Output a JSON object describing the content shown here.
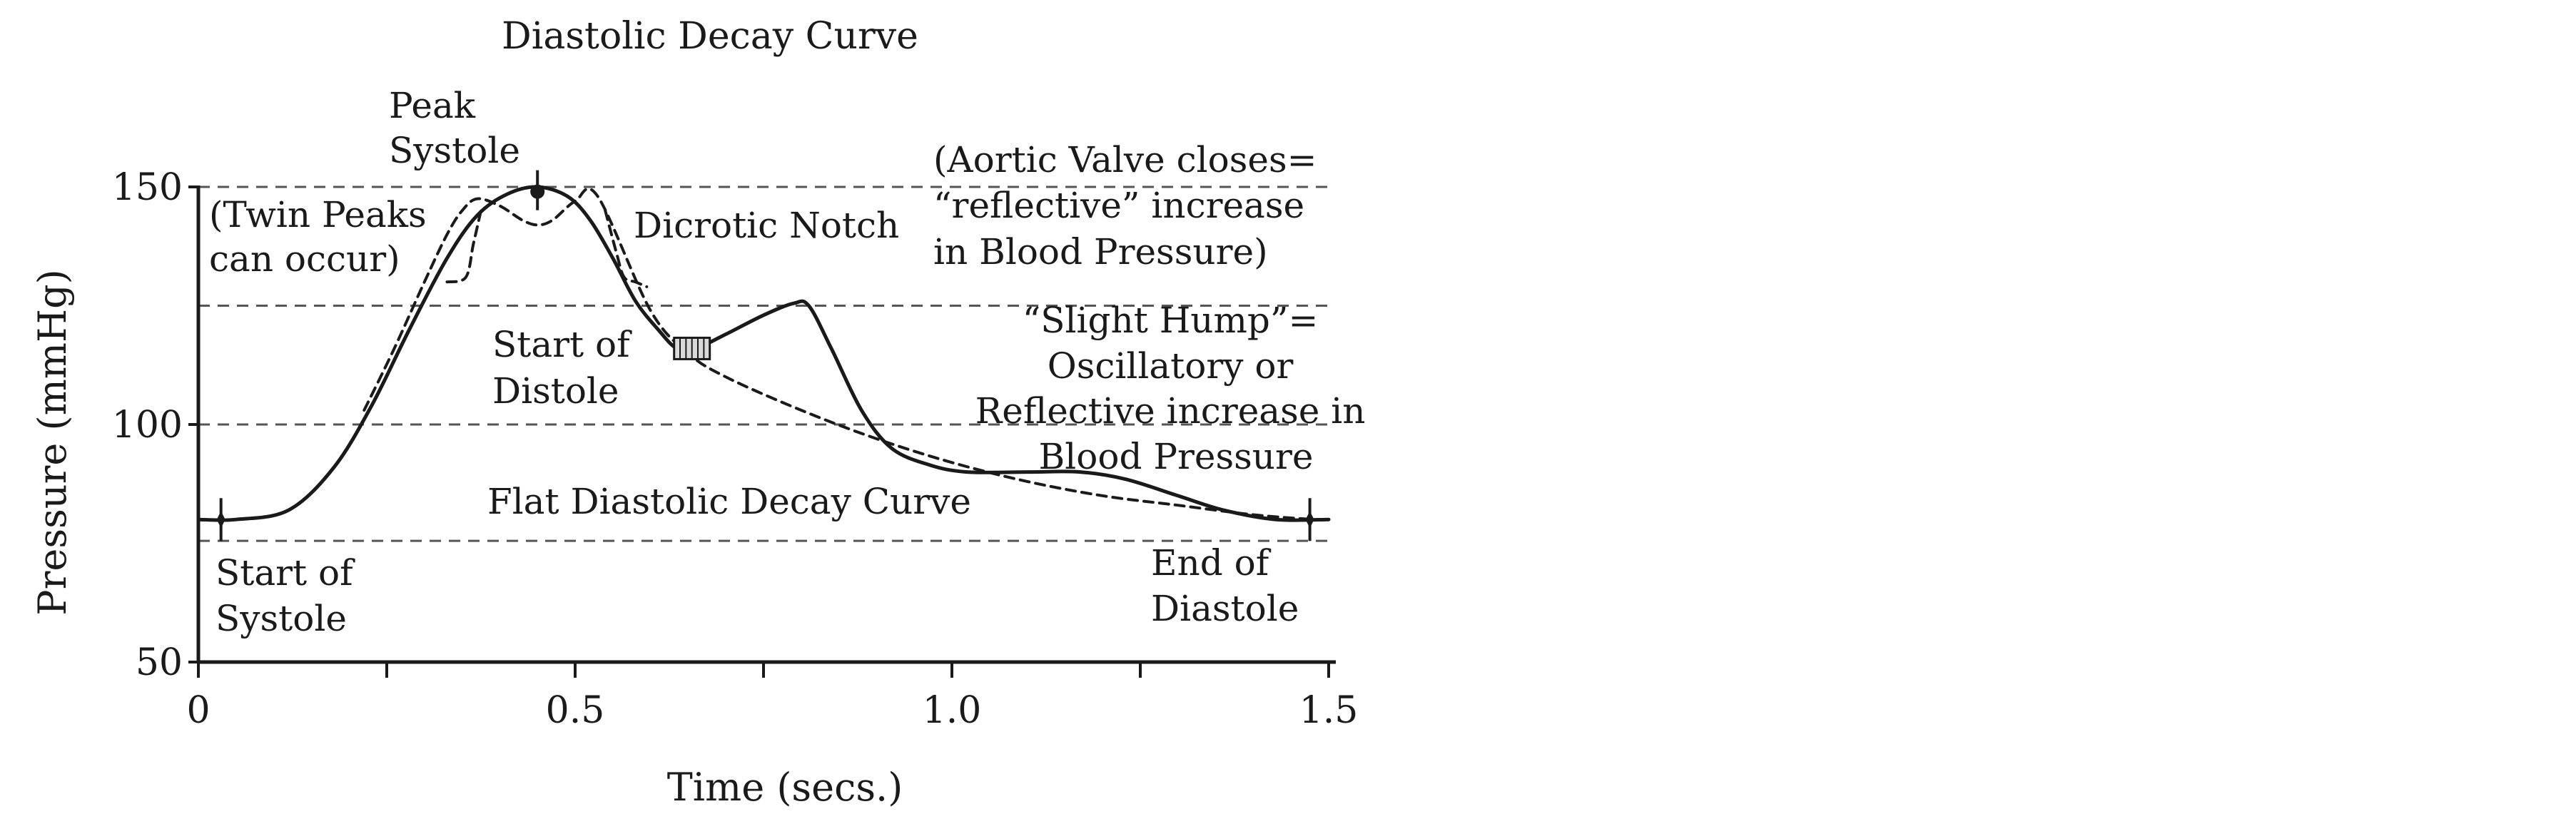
{
  "chart_data": {
    "type": "line",
    "title": "Diastolic Decay Curve",
    "xlabel": "Time (secs.)",
    "ylabel": "Pressure (mmHg)",
    "xlim": [
      0,
      1.5
    ],
    "ylim": [
      50,
      150
    ],
    "x_ticks": [
      0,
      0.25,
      0.5,
      0.75,
      1.0,
      1.25,
      1.5
    ],
    "x_tick_labels": [
      {
        "value": 0,
        "label": "0"
      },
      {
        "value": 0.5,
        "label": "0.5"
      },
      {
        "value": 1.0,
        "label": "1.0"
      },
      {
        "value": 1.5,
        "label": "1.5"
      }
    ],
    "y_tick_labels": [
      {
        "value": 50,
        "label": "50"
      },
      {
        "value": 100,
        "label": "100"
      },
      {
        "value": 150,
        "label": "150"
      }
    ],
    "reference_lines": [
      150,
      125,
      100,
      75.5
    ],
    "series": [
      {
        "style": "solid",
        "x": [
          0,
          0.05,
          0.12,
          0.18,
          0.23,
          0.28,
          0.33,
          0.37,
          0.41,
          0.45,
          0.49,
          0.52,
          0.55,
          0.58,
          0.61,
          0.635,
          0.66,
          0.7,
          0.75,
          0.79,
          0.81,
          0.84,
          0.88,
          0.92,
          0.97,
          1.02,
          1.1,
          1.17,
          1.23,
          1.3,
          1.36,
          1.43,
          1.5
        ],
        "y": [
          80,
          80,
          82,
          91,
          104,
          120,
          135,
          144,
          148.5,
          150,
          148,
          143,
          135,
          126,
          120,
          116,
          116,
          119,
          123,
          125.5,
          125,
          116,
          103,
          95,
          91.5,
          90,
          90,
          90,
          88.5,
          85,
          82,
          80,
          80
        ]
      },
      {
        "style": "dashed",
        "x": [
          0.22,
          0.26,
          0.3,
          0.33,
          0.35,
          0.37,
          0.4,
          0.43,
          0.45,
          0.47,
          0.5,
          0.53,
          0.6,
          0.65,
          0.7,
          0.8,
          0.9,
          1.0,
          1.1,
          1.2,
          1.3,
          1.4,
          1.48
        ],
        "y": [
          103,
          116,
          130,
          140,
          145,
          147.5,
          146,
          143,
          142,
          143,
          147,
          148,
          124,
          115,
          110,
          103,
          97,
          92,
          88,
          85,
          83,
          81,
          80
        ]
      },
      {
        "style": "dashed",
        "x": [
          0.33,
          0.355,
          0.365,
          0.375
        ],
        "y": [
          130,
          131,
          138,
          145
        ]
      },
      {
        "style": "dashed",
        "x": [
          0.54,
          0.555,
          0.565,
          0.58,
          0.595
        ],
        "y": [
          145,
          136,
          131,
          130,
          129
        ]
      }
    ],
    "markers": [
      {
        "kind": "peak-dot",
        "x": 0.45,
        "y": 149
      },
      {
        "kind": "notch-box",
        "x": 0.655,
        "y": 116
      },
      {
        "kind": "start-tick",
        "x": 0.03,
        "y": 80
      },
      {
        "kind": "end-tick",
        "x": 1.475,
        "y": 80
      }
    ],
    "annotations": [
      {
        "lines": [
          "Peak",
          "Systole"
        ]
      },
      {
        "lines": [
          "(Twin Peaks",
          "can occur)"
        ]
      },
      {
        "lines": [
          "Dicrotic Notch"
        ]
      },
      {
        "lines": [
          "(Aortic Valve closes=",
          "“reflective” increase",
          "in Blood Pressure)"
        ]
      },
      {
        "lines": [
          "“Slight Hump”=",
          "Oscillatory or",
          "Reflective increase in",
          "Blood Pressure"
        ]
      },
      {
        "lines": [
          "Start of",
          "Distole"
        ]
      },
      {
        "lines": [
          "Flat Diastolic Decay Curve"
        ]
      },
      {
        "lines": [
          "Start of",
          "Systole"
        ]
      },
      {
        "lines": [
          "End of",
          "Diastole"
        ]
      }
    ],
    "grid": false
  }
}
